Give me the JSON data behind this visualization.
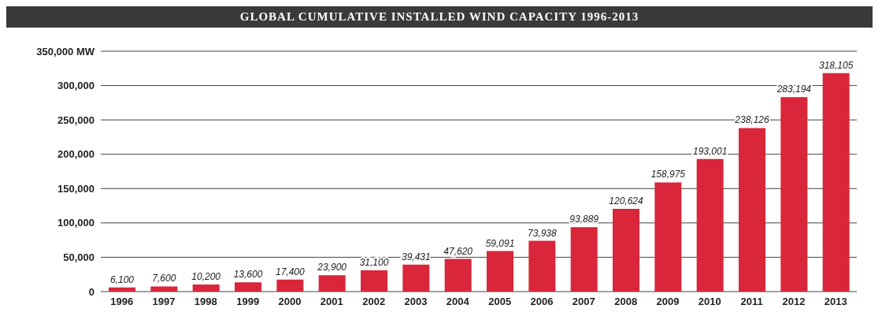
{
  "chart_data": {
    "type": "bar",
    "title": "GLOBAL CUMULATIVE INSTALLED WIND CAPACITY 1996-2013",
    "categories": [
      "1996",
      "1997",
      "1998",
      "1999",
      "2000",
      "2001",
      "2002",
      "2003",
      "2004",
      "2005",
      "2006",
      "2007",
      "2008",
      "2009",
      "2010",
      "2011",
      "2012",
      "2013"
    ],
    "values": [
      6100,
      7600,
      10200,
      13600,
      17400,
      23900,
      31100,
      39431,
      47620,
      59091,
      73938,
      93889,
      120624,
      158975,
      193001,
      238126,
      283194,
      318105
    ],
    "value_labels": [
      "6,100",
      "7,600",
      "10,200",
      "13,600",
      "17,400",
      "23,900",
      "31,100",
      "39,431",
      "47,620",
      "59,091",
      "73,938",
      "93,889",
      "120,624",
      "158,975",
      "193,001",
      "238,126",
      "283,194",
      "318,105"
    ],
    "color": "#d9263a",
    "ylim": [
      0,
      350000
    ],
    "yticks": [
      0,
      {
        "value": 50000,
        "label": "50,000"
      },
      {
        "value": 100000,
        "label": "100,000"
      },
      {
        "value": 150000,
        "label": "150,000"
      },
      {
        "value": 200000,
        "label": "200,000"
      },
      {
        "value": 250000,
        "label": "250,000"
      },
      {
        "value": 300000,
        "label": "300,000"
      },
      {
        "value": 350000,
        "label": "350,000 MW"
      }
    ],
    "grid": "y"
  }
}
